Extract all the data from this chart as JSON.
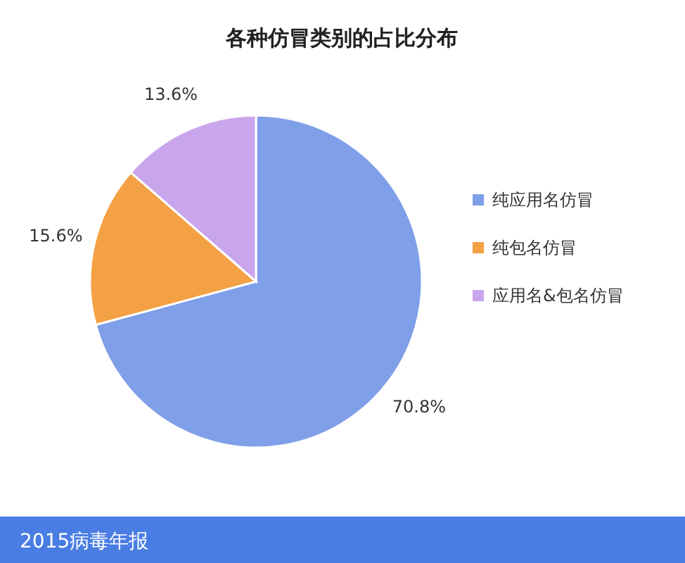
{
  "chart_data": {
    "type": "pie",
    "title": "各种仿冒类别的占比分布",
    "categories": [
      "纯应用名仿冒",
      "纯包名仿冒",
      "应用名&包名仿冒"
    ],
    "values": [
      70.8,
      15.6,
      13.6
    ],
    "colors": [
      "#7f9fe8",
      "#f4a044",
      "#c9a6ec"
    ],
    "value_labels": [
      "70.8%",
      "15.6%",
      "13.6%"
    ],
    "legend": "right",
    "annotations": [
      "2015病毒年报"
    ]
  }
}
